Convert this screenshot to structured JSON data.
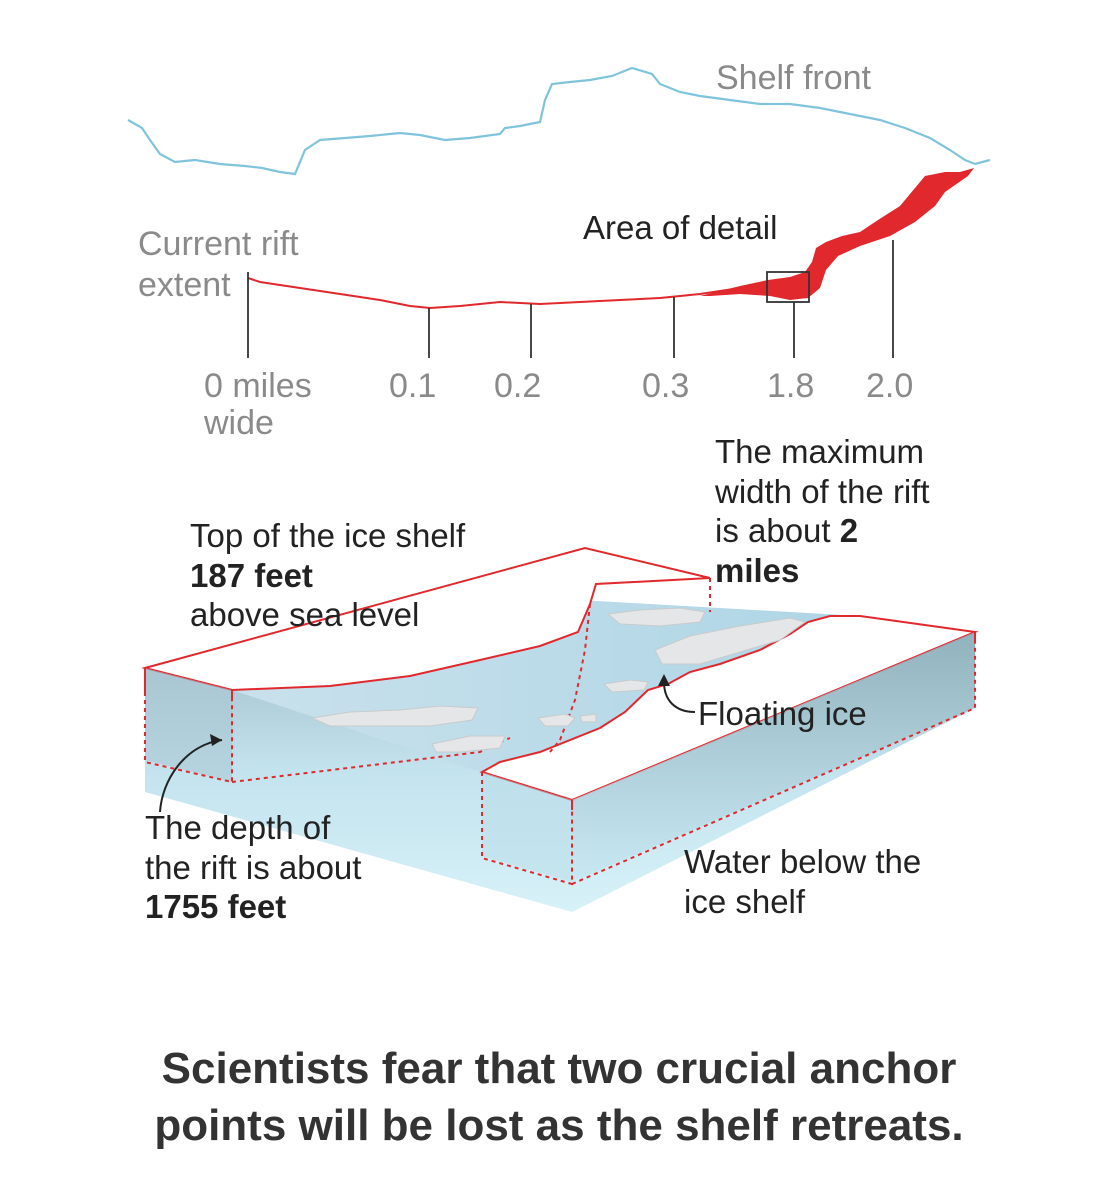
{
  "top_map": {
    "shelf_front_label": "Shelf front",
    "rift_label_line1": "Current rift",
    "rift_label_line2": "extent",
    "detail_label": "Area of detail",
    "width_ticks": [
      "0 miles",
      "0.1",
      "0.2",
      "0.3",
      "1.8",
      "2.0"
    ],
    "width_tick_sub": "wide",
    "colors": {
      "shelf_front": "#7fc4dc",
      "rift": "#e0282d",
      "detail_box": "#333333"
    }
  },
  "block_diagram": {
    "top_label_line1": "Top of the ice shelf",
    "top_label_bold": "187 feet",
    "top_label_line3": "above sea level",
    "max_width_line1": "The maximum",
    "max_width_line2": "width of the rift",
    "max_width_line3": "is about",
    "max_width_bold_num": "2",
    "max_width_bold_unit": "miles",
    "floating_label": "Floating ice",
    "depth_line1": "The depth of",
    "depth_line2": "the rift is about",
    "depth_bold": "1755 feet",
    "water_line1": "Water below the",
    "water_line2": "ice shelf",
    "colors": {
      "outline": "#e0282d",
      "water": "#bfe3ef",
      "water_dark": "#8fb5c2",
      "ice": "#ffffff"
    }
  },
  "caption": {
    "line1": "Scientists fear that two crucial anchor",
    "line2": "points will be lost as the shelf retreats."
  }
}
